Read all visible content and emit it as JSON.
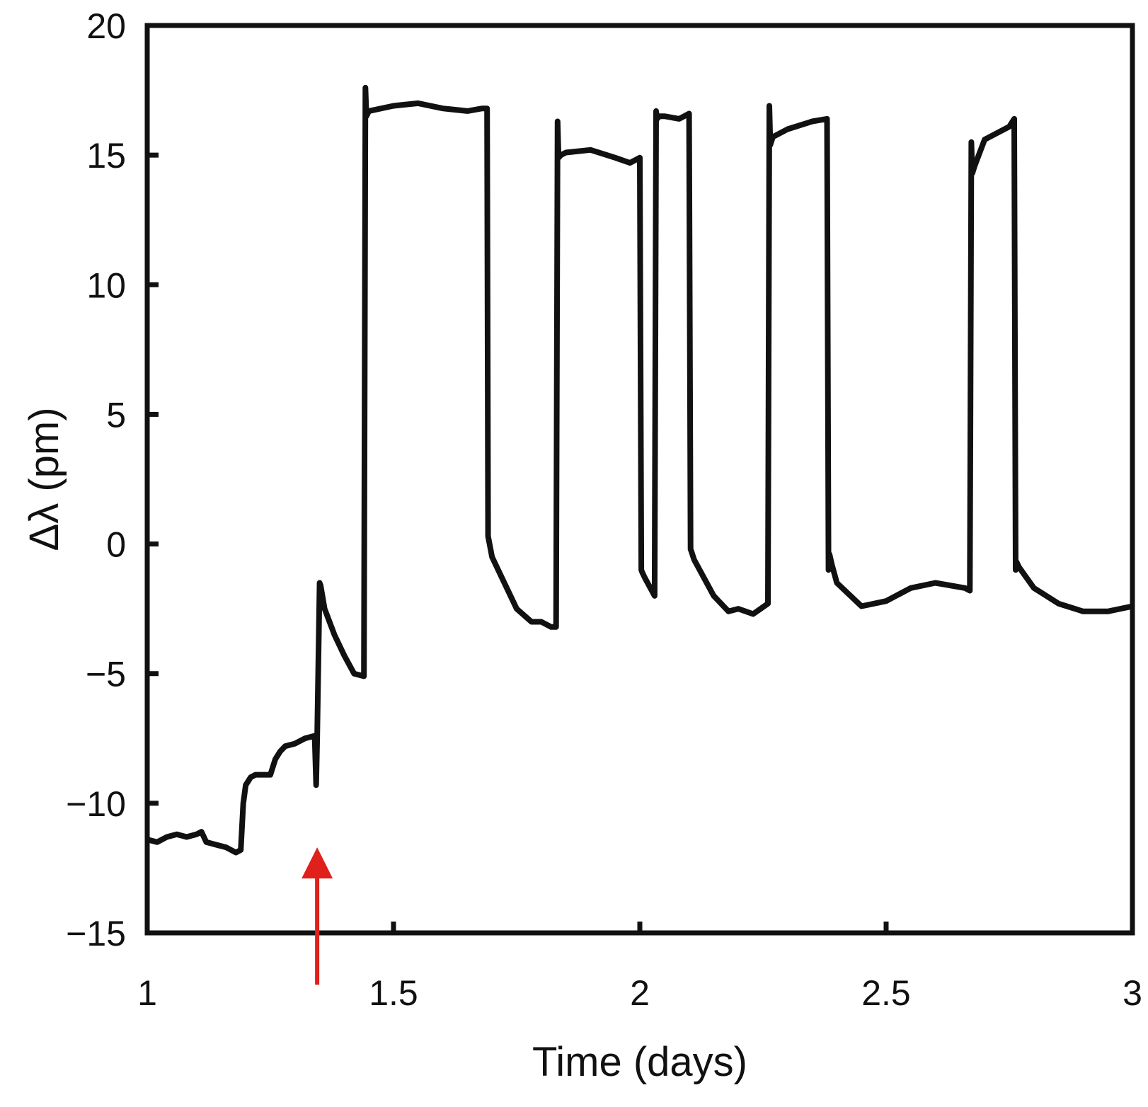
{
  "chart_data": {
    "type": "line",
    "title": "",
    "xlabel": "Time (days)",
    "ylabel": "Δλ (pm)",
    "xlim": [
      1,
      3
    ],
    "ylim": [
      -15,
      20
    ],
    "xticks": [
      1,
      1.5,
      2,
      2.5,
      3
    ],
    "xtick_labels": [
      "1",
      "1.5",
      "2",
      "2.5",
      "3"
    ],
    "yticks": [
      -15,
      -10,
      -5,
      0,
      5,
      10,
      15,
      20
    ],
    "ytick_labels": [
      "−15",
      "−10",
      "−5",
      "0",
      "5",
      "10",
      "15",
      "20"
    ],
    "grid": false,
    "line_color": "#111111",
    "arrow_color": "#e0201b",
    "annotations": [
      {
        "type": "arrow",
        "x": 1.345,
        "y_from": -17,
        "y_to": -11.7,
        "color": "#e0201b"
      }
    ],
    "series": [
      {
        "name": "Δλ",
        "x": [
          1.0,
          1.02,
          1.04,
          1.06,
          1.08,
          1.1,
          1.11,
          1.12,
          1.14,
          1.16,
          1.18,
          1.19,
          1.195,
          1.2,
          1.21,
          1.22,
          1.24,
          1.25,
          1.26,
          1.27,
          1.28,
          1.3,
          1.32,
          1.34,
          1.343,
          1.345,
          1.35,
          1.352,
          1.36,
          1.38,
          1.4,
          1.42,
          1.44,
          1.443,
          1.445,
          1.45,
          1.5,
          1.55,
          1.6,
          1.65,
          1.68,
          1.69,
          1.692,
          1.7,
          1.72,
          1.75,
          1.78,
          1.8,
          1.82,
          1.83,
          1.833,
          1.835,
          1.84,
          1.85,
          1.9,
          1.95,
          1.98,
          2.0,
          2.003,
          2.005,
          2.01,
          2.03,
          2.033,
          2.035,
          2.04,
          2.05,
          2.08,
          2.1,
          2.103,
          2.105,
          2.11,
          2.15,
          2.18,
          2.2,
          2.23,
          2.26,
          2.263,
          2.265,
          2.27,
          2.3,
          2.35,
          2.38,
          2.383,
          2.385,
          2.39,
          2.4,
          2.45,
          2.5,
          2.55,
          2.6,
          2.66,
          2.67,
          2.673,
          2.675,
          2.68,
          2.7,
          2.75,
          2.76,
          2.763,
          2.765,
          2.77,
          2.8,
          2.85,
          2.9,
          2.95,
          3.0
        ],
        "y": [
          -11.4,
          -11.5,
          -11.3,
          -11.2,
          -11.3,
          -11.2,
          -11.1,
          -11.5,
          -11.6,
          -11.7,
          -11.9,
          -11.8,
          -10,
          -9.3,
          -9.0,
          -8.9,
          -8.9,
          -8.9,
          -8.3,
          -8.0,
          -7.8,
          -7.7,
          -7.5,
          -7.4,
          -9.3,
          -7.5,
          -1.5,
          -1.6,
          -2.5,
          -3.5,
          -4.3,
          -5.0,
          -5.1,
          17.6,
          16.5,
          16.7,
          16.9,
          17.0,
          16.8,
          16.7,
          16.8,
          16.8,
          0.3,
          -0.5,
          -1.3,
          -2.5,
          -3.0,
          -3.0,
          -3.2,
          -3.2,
          16.3,
          14.9,
          15.0,
          15.1,
          15.2,
          14.9,
          14.7,
          14.9,
          -1.0,
          -1.1,
          -1.3,
          -2.0,
          16.7,
          16.4,
          16.5,
          16.5,
          16.4,
          16.6,
          -0.2,
          -0.3,
          -0.6,
          -2.0,
          -2.6,
          -2.5,
          -2.7,
          -2.3,
          16.9,
          15.4,
          15.7,
          16.0,
          16.3,
          16.4,
          -1.0,
          -0.4,
          -0.8,
          -1.5,
          -2.4,
          -2.2,
          -1.7,
          -1.5,
          -1.7,
          -1.8,
          15.5,
          14.3,
          14.6,
          15.6,
          16.1,
          16.4,
          -1.0,
          -0.7,
          -0.9,
          -1.7,
          -2.3,
          -2.6,
          -2.6,
          -2.4
        ]
      }
    ]
  }
}
